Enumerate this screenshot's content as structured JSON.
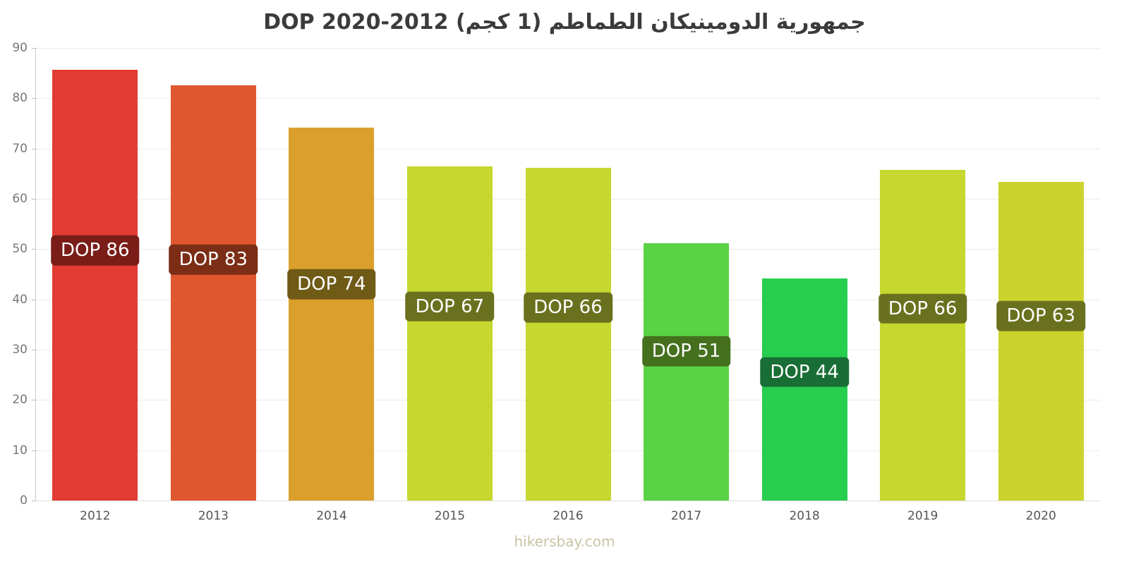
{
  "chart": {
    "title": "جمهورية الدومينيكان الطماطم (1 كجم) DOP 2020-2012",
    "footer": "hikersbay.com"
  },
  "chart_data": {
    "type": "bar",
    "title": "جمهورية الدومينيكان الطماطم (1 كجم) DOP 2020-2012",
    "categories": [
      "2012",
      "2013",
      "2014",
      "2015",
      "2016",
      "2017",
      "2018",
      "2019",
      "2020"
    ],
    "values": [
      85.7,
      82.6,
      74.1,
      66.5,
      66.2,
      51.2,
      44.1,
      65.8,
      63.3
    ],
    "bar_labels": [
      "DOP 86",
      "DOP 83",
      "DOP 74",
      "DOP 67",
      "DOP 66",
      "DOP 51",
      "DOP 44",
      "DOP 66",
      "DOP 63"
    ],
    "bar_colors": [
      "#e23b33",
      "#e0562f",
      "#dba02c",
      "#c6d72f",
      "#c6d72f",
      "#5ad245",
      "#27ce4f",
      "#c6d72f",
      "#ccd32f"
    ],
    "label_colors": [
      "#7a1d18",
      "#7c2d15",
      "#6f5a16",
      "#6a711e",
      "#6a711e",
      "#45701d",
      "#186e35",
      "#6a711e",
      "#6a711e"
    ],
    "currency": "DOP",
    "xlabel": "",
    "ylabel": "",
    "ylim": [
      0,
      90
    ],
    "yticks": [
      0,
      10,
      20,
      30,
      40,
      50,
      60,
      70,
      80,
      90
    ],
    "grid": true,
    "legend": "none"
  }
}
